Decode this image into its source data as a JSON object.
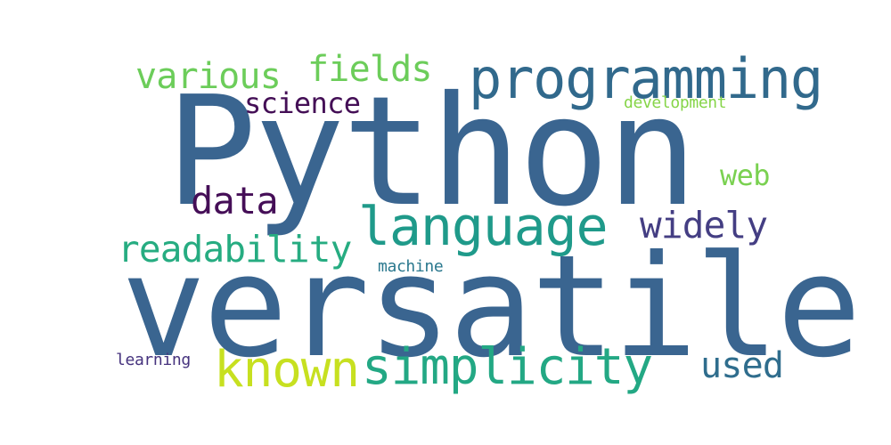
{
  "wordcloud": {
    "words": [
      {
        "id": "python",
        "text": "Python",
        "color": "#3a6590"
      },
      {
        "id": "versatile",
        "text": "versatile",
        "color": "#3a6590"
      },
      {
        "id": "programming",
        "text": "programming",
        "color": "#31698c"
      },
      {
        "id": "language",
        "text": "language",
        "color": "#1f9a8a"
      },
      {
        "id": "simplicity",
        "text": "simplicity",
        "color": "#23a884"
      },
      {
        "id": "known",
        "text": "known",
        "color": "#c7e020"
      },
      {
        "id": "readability",
        "text": "readability",
        "color": "#26ac81"
      },
      {
        "id": "various",
        "text": "various",
        "color": "#6ccd5a"
      },
      {
        "id": "fields",
        "text": "fields",
        "color": "#6ccd5a"
      },
      {
        "id": "science",
        "text": "science",
        "color": "#440f56"
      },
      {
        "id": "data",
        "text": "data",
        "color": "#450e57"
      },
      {
        "id": "widely",
        "text": "widely",
        "color": "#443e83"
      },
      {
        "id": "web",
        "text": "web",
        "color": "#7ad151"
      },
      {
        "id": "used",
        "text": "used",
        "color": "#2f6d8d"
      },
      {
        "id": "development",
        "text": "development",
        "color": "#86d549"
      },
      {
        "id": "machine",
        "text": "machine",
        "color": "#2a788e"
      },
      {
        "id": "learning",
        "text": "learning",
        "color": "#46337e"
      }
    ]
  }
}
